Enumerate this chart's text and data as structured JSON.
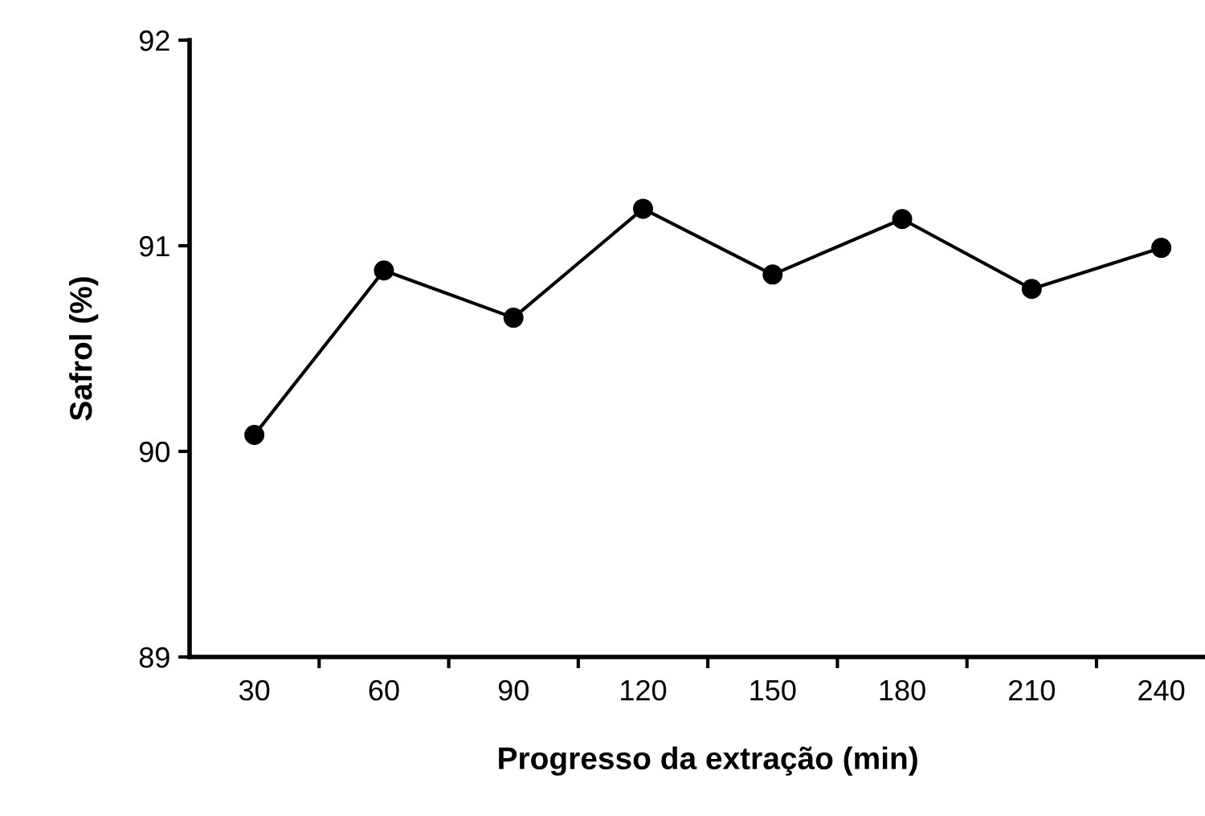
{
  "chart_data": {
    "type": "line",
    "xlabel": "Progresso da extração (min)",
    "ylabel": "Safrol (%)",
    "categories": [
      "30",
      "60",
      "90",
      "120",
      "150",
      "180",
      "210",
      "240"
    ],
    "series": [
      {
        "color": "#000000",
        "values": [
          90.08,
          90.88,
          90.65,
          91.18,
          90.86,
          91.13,
          90.79,
          90.99
        ]
      }
    ],
    "ylim": [
      89,
      92
    ],
    "yticks": [
      89,
      90,
      91,
      92
    ],
    "marker": "circle",
    "line_style": "solid",
    "grid": false,
    "legend": false
  }
}
